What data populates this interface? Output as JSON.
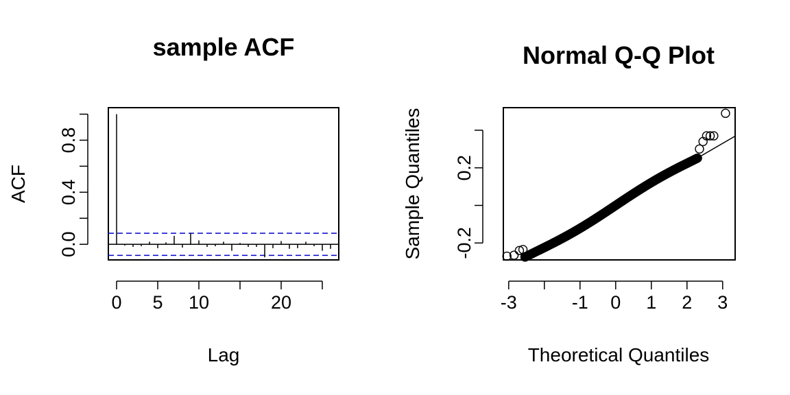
{
  "chart_data": [
    {
      "type": "bar",
      "title": "sample ACF",
      "xlabel": "Lag",
      "ylabel": "ACF",
      "xlim": [
        -1,
        27
      ],
      "ylim": [
        -0.12,
        1.05
      ],
      "xticks": [
        0,
        5,
        10,
        15,
        20,
        25
      ],
      "xtick_labels": [
        "0",
        "5",
        "10",
        "",
        "20",
        ""
      ],
      "yticks": [
        0.0,
        0.2,
        0.4,
        0.6,
        0.8,
        1.0
      ],
      "ytick_labels": [
        "0.0",
        "",
        "0.4",
        "",
        "0.8",
        ""
      ],
      "lags": [
        0,
        1,
        2,
        3,
        4,
        5,
        6,
        7,
        8,
        9,
        10,
        11,
        12,
        13,
        14,
        15,
        16,
        17,
        18,
        19,
        20,
        21,
        22,
        23,
        24,
        25,
        26,
        27
      ],
      "values": [
        1.0,
        -0.01,
        -0.02,
        -0.015,
        0.02,
        -0.03,
        0.015,
        0.065,
        -0.025,
        0.085,
        0.03,
        -0.02,
        -0.015,
        0.02,
        -0.05,
        0.01,
        -0.02,
        -0.02,
        -0.1,
        -0.03,
        0.025,
        -0.035,
        -0.03,
        0.02,
        -0.015,
        -0.05,
        -0.035,
        0.01
      ],
      "confidence_bound": 0.085,
      "confidence_color": "#0000cc",
      "grid": false
    },
    {
      "type": "scatter",
      "title": "Normal Q-Q Plot",
      "xlabel": "Theoretical Quantiles",
      "ylabel": "Sample Quantiles",
      "xlim": [
        -3.15,
        3.35
      ],
      "ylim": [
        -0.29,
        0.52
      ],
      "xticks": [
        -3,
        -2,
        -1,
        0,
        1,
        2,
        3
      ],
      "xtick_labels": [
        "-3",
        "",
        "-1",
        "0",
        "1",
        "2",
        "3"
      ],
      "yticks": [
        -0.2,
        0.0,
        0.2,
        0.4
      ],
      "ytick_labels": [
        "-0.2",
        "",
        "0.2",
        ""
      ],
      "n_points": 500,
      "reference_line": {
        "slope": 0.11,
        "intercept": 0.0
      },
      "tail_points": [
        {
          "x": -3.05,
          "y": -0.27
        },
        {
          "x": -2.85,
          "y": -0.265
        },
        {
          "x": -2.7,
          "y": -0.24
        },
        {
          "x": -2.6,
          "y": -0.235
        },
        {
          "x": 2.35,
          "y": 0.3
        },
        {
          "x": 2.45,
          "y": 0.34
        },
        {
          "x": 2.55,
          "y": 0.37
        },
        {
          "x": 2.65,
          "y": 0.37
        },
        {
          "x": 2.75,
          "y": 0.37
        },
        {
          "x": 3.08,
          "y": 0.49
        }
      ],
      "grid": false
    }
  ]
}
